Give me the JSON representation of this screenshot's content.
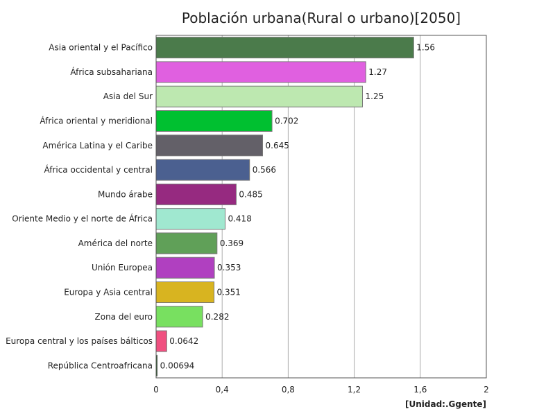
{
  "chart_data": {
    "type": "bar",
    "orientation": "horizontal",
    "title": "Población urbana(Rural o urbano)[2050]",
    "unit_label": "[Unidad:.Ggente]",
    "categories": [
      "Asia oriental y el Pacífico",
      "África subsahariana",
      "Asia del Sur",
      "África oriental y meridional",
      "América Latina y el Caribe",
      "África occidental y central",
      "Mundo árabe",
      "Oriente Medio y el norte de África",
      "América del norte",
      "Unión Europea",
      "Europa y Asia central",
      "Zona del euro",
      "Europa central y los países bálticos",
      "República Centroafricana"
    ],
    "values": [
      1.56,
      1.27,
      1.25,
      0.702,
      0.645,
      0.566,
      0.485,
      0.418,
      0.369,
      0.353,
      0.351,
      0.282,
      0.0642,
      0.00694
    ],
    "value_labels": [
      "1.56",
      "1.27",
      "1.25",
      "0.702",
      "0.645",
      "0.566",
      "0.485",
      "0.418",
      "0.369",
      "0.353",
      "0.351",
      "0.282",
      "0.0642",
      "0.00694"
    ],
    "colors": [
      "#4b7b4b",
      "#e060e0",
      "#bde8b0",
      "#00c030",
      "#636068",
      "#4b6090",
      "#962a80",
      "#a0e8d0",
      "#60a058",
      "#b040c0",
      "#d8b420",
      "#78e060",
      "#f05080",
      "#2a5a2a"
    ],
    "xlim": [
      0,
      2
    ],
    "xticks": [
      0,
      0.4,
      0.8,
      1.2,
      1.6,
      2
    ],
    "xtick_labels": [
      "0",
      "0,4",
      "0,8",
      "1,2",
      "1,6",
      "2"
    ],
    "grid": true,
    "legend": "none"
  }
}
